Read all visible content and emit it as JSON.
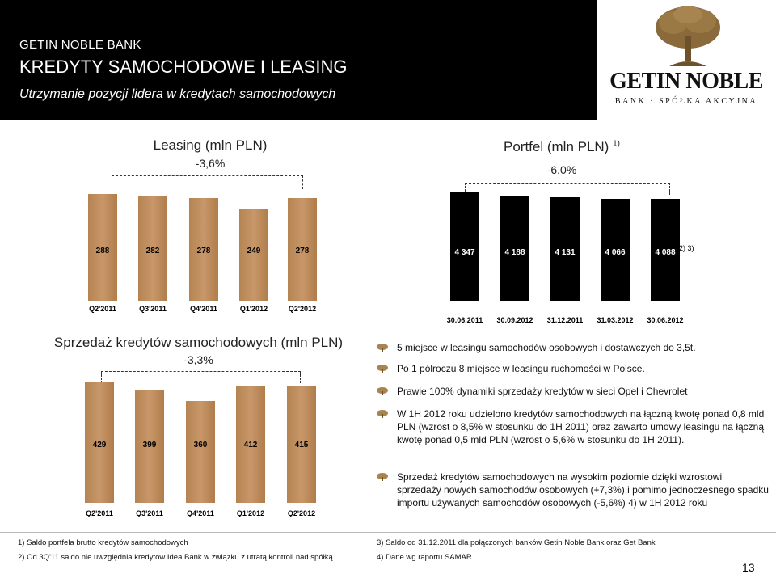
{
  "header": {
    "bank_name": "GETIN NOBLE BANK",
    "title": "KREDYTY SAMOCHODOWE I LEASING",
    "subtitle": "Utrzymanie pozycji lidera w kredytach samochodowych",
    "logo": {
      "name": "GETIN NOBLE",
      "tagline": "BANK · SPÓŁKA AKCYJNA"
    }
  },
  "charts": {
    "leasing": {
      "title": "Leasing (mln PLN)",
      "change": "-3,6%"
    },
    "portfel": {
      "title": "Portfel (mln PLN)",
      "title_note": "1)",
      "change": "-6,0%",
      "last_note": "2) 3)"
    },
    "sprzedaz": {
      "title": "Sprzedaż kredytów samochodowych (mln PLN)",
      "change": "-3,3%"
    }
  },
  "chart_data": [
    {
      "type": "bar",
      "title": "Leasing (mln PLN)",
      "categories": [
        "Q2'2011",
        "Q3'2011",
        "Q4'2011",
        "Q1'2012",
        "Q2'2012"
      ],
      "values": [
        288,
        282,
        278,
        249,
        278
      ],
      "value_labels": [
        "288",
        "282",
        "278",
        "249",
        "278"
      ],
      "color": "#c08b5a",
      "annotation": "-3,6%"
    },
    {
      "type": "bar",
      "title": "Portfel (mln PLN)",
      "categories": [
        "30.06.2011",
        "30.09.2012",
        "31.12.2011",
        "31.03.2012",
        "30.06.2012"
      ],
      "values": [
        4347,
        4188,
        4131,
        4066,
        4088
      ],
      "value_labels": [
        "4 347",
        "4 188",
        "4 131",
        "4 066",
        "4 088"
      ],
      "color": "#000000",
      "annotation": "-6,0%"
    },
    {
      "type": "bar",
      "title": "Sprzedaż kredytów samochodowych (mln PLN)",
      "categories": [
        "Q2'2011",
        "Q3'2011",
        "Q4'2011",
        "Q1'2012",
        "Q2'2012"
      ],
      "values": [
        429,
        399,
        360,
        412,
        415
      ],
      "value_labels": [
        "429",
        "399",
        "360",
        "412",
        "415"
      ],
      "color": "#c08b5a",
      "annotation": "-3,3%"
    }
  ],
  "bullets": [
    "5 miejsce w leasingu samochodów osobowych i dostawczych do 3,5t.",
    "Po 1 półroczu 8 miejsce w leasingu ruchomości w Polsce.",
    "Prawie 100% dynamiki sprzedaży kredytów w sieci Opel i Chevrolet",
    "W 1H 2012 roku udzielono kredytów samochodowych na łączną kwotę ponad 0,8 mld PLN (wzrost o 8,5% w stosunku do 1H 2011) oraz zawarto umowy leasingu na łączną kwotę ponad 0,5 mld PLN (wzrost o 5,6% w stosunku do 1H 2011).",
    "Sprzedaż kredytów samochodowych na wysokim poziomie dzięki wzrostowi sprzedaży nowych samochodów osobowych (+7,3%) i pomimo jednoczesnego spadku importu używanych samochodów osobowych (-5,6%) 4) w 1H 2012 roku"
  ],
  "footnotes": [
    "1)   Saldo portfela brutto kredytów samochodowych",
    "2)   Od 3Q'11 saldo nie uwzględnia kredytów Idea Bank w związku z utratą kontroli nad spółką",
    "3)  Saldo od 31.12.2011 dla połączonych banków Getin Noble Bank oraz Get Bank",
    "4)  Dane wg raportu SAMAR"
  ],
  "page_number": "13"
}
